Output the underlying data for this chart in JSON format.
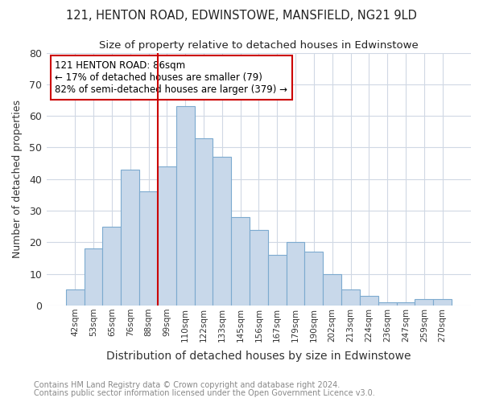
{
  "title1": "121, HENTON ROAD, EDWINSTOWE, MANSFIELD, NG21 9LD",
  "title2": "Size of property relative to detached houses in Edwinstowe",
  "xlabel": "Distribution of detached houses by size in Edwinstowe",
  "ylabel": "Number of detached properties",
  "bar_labels": [
    "42sqm",
    "53sqm",
    "65sqm",
    "76sqm",
    "88sqm",
    "99sqm",
    "110sqm",
    "122sqm",
    "133sqm",
    "145sqm",
    "156sqm",
    "167sqm",
    "179sqm",
    "190sqm",
    "202sqm",
    "213sqm",
    "224sqm",
    "236sqm",
    "247sqm",
    "259sqm",
    "270sqm"
  ],
  "bar_values": [
    5,
    18,
    25,
    43,
    36,
    44,
    63,
    53,
    47,
    28,
    24,
    16,
    20,
    17,
    10,
    5,
    3,
    1,
    1,
    2,
    2
  ],
  "bar_color": "#c8d8ea",
  "bar_edge_color": "#7caacf",
  "vline_x_index": 4,
  "vline_color": "#cc0000",
  "annotation_text": "121 HENTON ROAD: 86sqm\n← 17% of detached houses are smaller (79)\n82% of semi-detached houses are larger (379) →",
  "annotation_box_color": "#ffffff",
  "annotation_box_edge": "#cc0000",
  "ylim": [
    0,
    80
  ],
  "yticks": [
    0,
    10,
    20,
    30,
    40,
    50,
    60,
    70,
    80
  ],
  "footer1": "Contains HM Land Registry data © Crown copyright and database right 2024.",
  "footer2": "Contains public sector information licensed under the Open Government Licence v3.0.",
  "background_color": "#ffffff",
  "plot_background": "#ffffff",
  "grid_color": "#d0d8e4",
  "title_color": "#222222",
  "footer_color": "#888888"
}
